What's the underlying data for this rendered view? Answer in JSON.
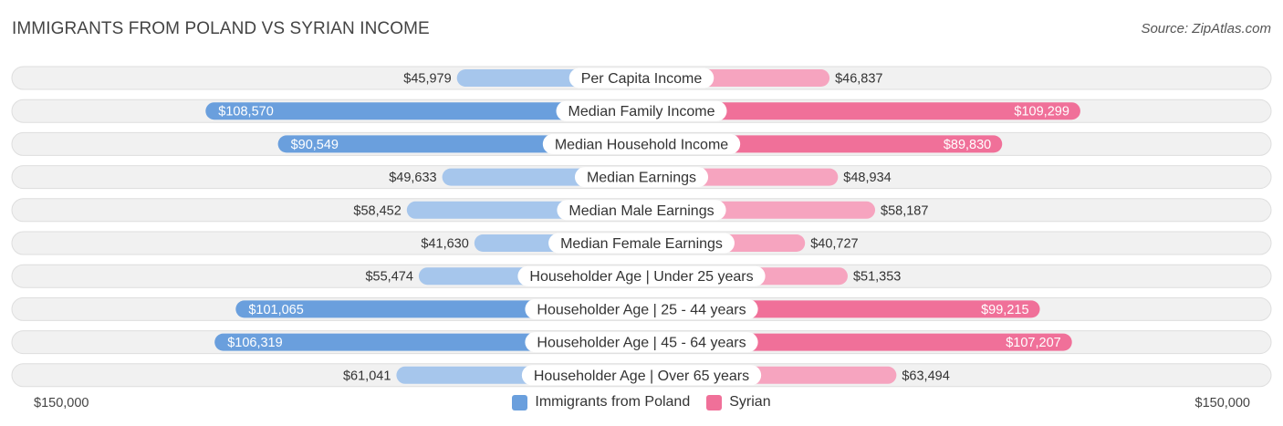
{
  "header": {
    "title": "IMMIGRANTS FROM POLAND VS SYRIAN INCOME",
    "source": "Source: ZipAtlas.com"
  },
  "colors": {
    "left_strong": "#6a9fdd",
    "left_light": "#a6c6ec",
    "right_strong": "#f07099",
    "right_light": "#f6a4bf",
    "row_bg": "#f1f1f1",
    "row_border": "#dedede"
  },
  "chart_data": {
    "type": "bar",
    "orientation": "horizontal-diverging",
    "title": "IMMIGRANTS FROM POLAND VS SYRIAN INCOME",
    "max_value": 150000,
    "axis_left_label": "$150,000",
    "axis_right_label": "$150,000",
    "legend_position": "bottom-center",
    "categories": [
      "Per Capita Income",
      "Median Family Income",
      "Median Household Income",
      "Median Earnings",
      "Median Male Earnings",
      "Median Female Earnings",
      "Householder Age | Under 25 years",
      "Householder Age | 25 - 44 years",
      "Householder Age | 45 - 64 years",
      "Householder Age | Over 65 years"
    ],
    "series": [
      {
        "name": "Immigrants from Poland",
        "values": [
          45979,
          108570,
          90549,
          49633,
          58452,
          41630,
          55474,
          101065,
          106319,
          61041
        ],
        "labels": [
          "$45,979",
          "$108,570",
          "$90,549",
          "$49,633",
          "$58,452",
          "$41,630",
          "$55,474",
          "$101,065",
          "$106,319",
          "$61,041"
        ]
      },
      {
        "name": "Syrian",
        "values": [
          46837,
          109299,
          89830,
          48934,
          58187,
          40727,
          51353,
          99215,
          107207,
          63494
        ],
        "labels": [
          "$46,837",
          "$109,299",
          "$89,830",
          "$48,934",
          "$58,187",
          "$40,727",
          "$51,353",
          "$99,215",
          "$107,207",
          "$63,494"
        ]
      }
    ]
  }
}
